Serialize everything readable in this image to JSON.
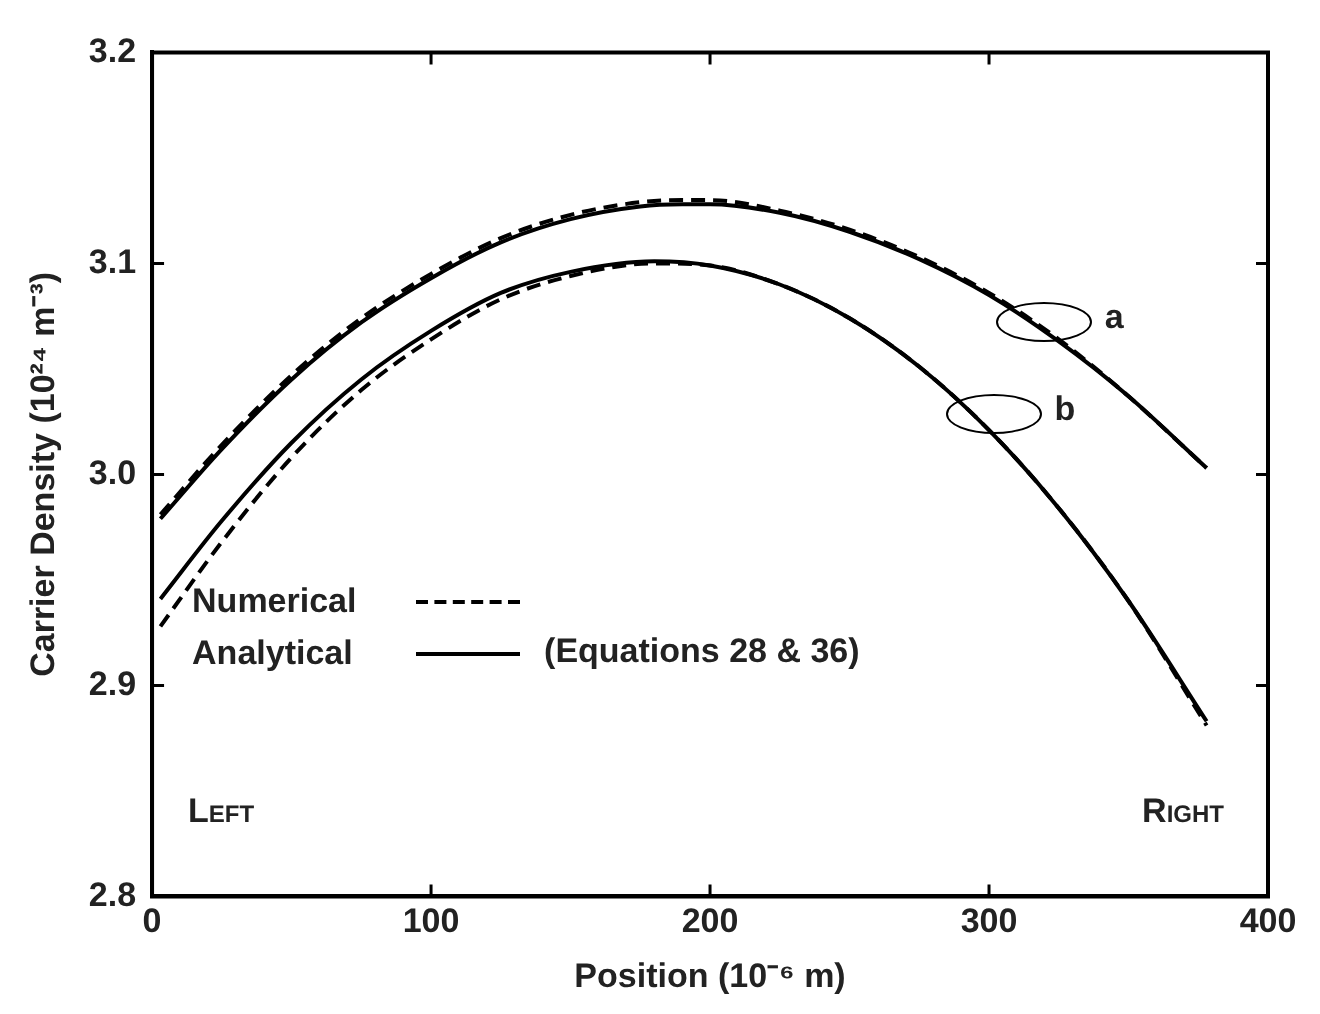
{
  "chart_data": {
    "type": "line",
    "xlabel": "Position (10⁻⁶ m)",
    "ylabel": "Carrier Density (10²⁴ m⁻³)",
    "xlim": [
      0,
      400
    ],
    "xticks": [
      0,
      100,
      200,
      300,
      400
    ],
    "ylim": [
      2.8,
      3.2
    ],
    "yticks": [
      {
        "value": 2.8,
        "label": "2.8"
      },
      {
        "value": 2.9,
        "label": "2.9"
      },
      {
        "value": 3.0,
        "label": "3.0"
      },
      {
        "value": 3.1,
        "label": "3.1"
      },
      {
        "value": 3.2,
        "label": "3.2"
      }
    ],
    "grid": false,
    "legend": "bottom left",
    "marker": "none",
    "series": [
      {
        "name": "Numerical",
        "color": "#000000",
        "line_style": "dashed",
        "x": [
          3,
          25,
          50,
          75,
          100,
          125,
          150,
          175,
          190,
          200,
          225,
          250,
          275,
          300,
          325,
          350,
          378
        ],
        "values": [
          2.981,
          3.014,
          3.047,
          3.074,
          3.095,
          3.112,
          3.123,
          3.129,
          3.13,
          3.13,
          3.125,
          3.116,
          3.103,
          3.086,
          3.064,
          3.037,
          3.003
        ]
      },
      {
        "name": "Analytical",
        "color": "#000000",
        "line_style": "solid",
        "x": [
          3,
          25,
          50,
          75,
          100,
          125,
          150,
          175,
          190,
          200,
          225,
          250,
          275,
          300,
          325,
          350,
          378
        ],
        "values": [
          2.979,
          3.012,
          3.045,
          3.072,
          3.093,
          3.11,
          3.121,
          3.127,
          3.128,
          3.128,
          3.124,
          3.115,
          3.102,
          3.085,
          3.063,
          3.037,
          3.003
        ]
      },
      {
        "color": "#000000",
        "line_style": "dashed",
        "x": [
          3,
          25,
          50,
          75,
          100,
          125,
          150,
          180,
          200,
          225,
          250,
          275,
          300,
          325,
          350,
          378
        ],
        "values": [
          2.928,
          2.968,
          3.008,
          3.04,
          3.064,
          3.083,
          3.094,
          3.1,
          3.099,
          3.09,
          3.074,
          3.051,
          3.021,
          2.984,
          2.94,
          2.881
        ]
      },
      {
        "color": "#000000",
        "line_style": "solid",
        "x": [
          3,
          25,
          50,
          75,
          100,
          125,
          150,
          180,
          200,
          225,
          250,
          275,
          300,
          325,
          350,
          378
        ],
        "values": [
          2.941,
          2.978,
          3.015,
          3.045,
          3.068,
          3.086,
          3.096,
          3.101,
          3.099,
          3.09,
          3.074,
          3.051,
          3.021,
          2.984,
          2.94,
          2.883
        ]
      }
    ],
    "annotations": [
      {
        "text": "a",
        "x": 320,
        "y": 3.068
      },
      {
        "text": "b",
        "x": 302,
        "y": 3.025
      },
      "(Equations 28 & 36)",
      "Left",
      "Right"
    ]
  }
}
